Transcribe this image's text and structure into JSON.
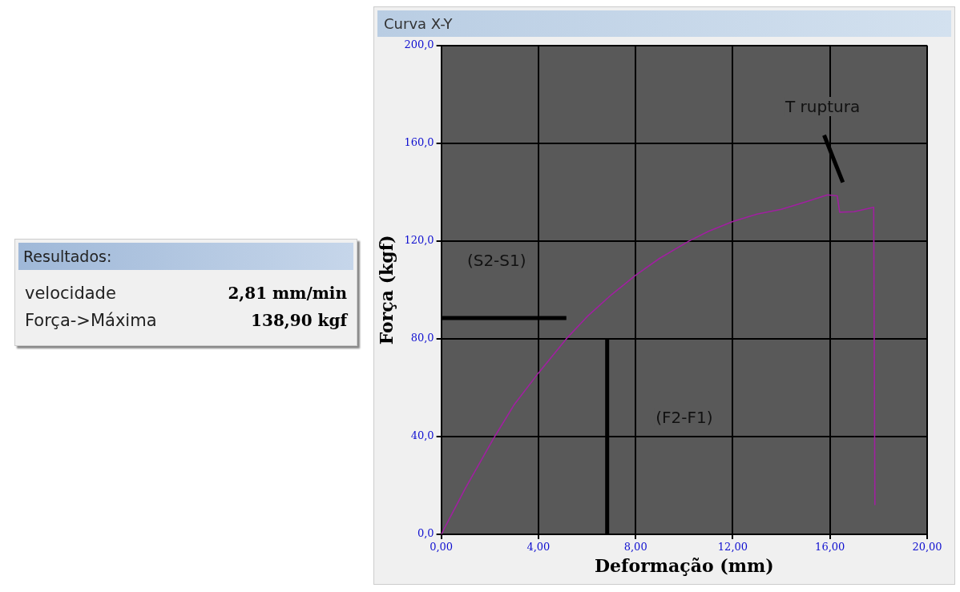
{
  "chart_data": [
    {
      "type": "other",
      "title": "Resultados:",
      "annotations": [
        "velocidade",
        "2,81 mm/min",
        "Força->Máxima",
        "138,90 kgf"
      ]
    },
    {
      "type": "line",
      "title": "Curva X-Y",
      "xlabel": "Deformação (mm)",
      "ylabel": "Força (kgf)",
      "x": [
        0,
        1,
        2.2,
        3,
        4,
        5.15,
        6,
        7,
        8,
        9,
        10.2,
        11,
        12,
        13,
        14,
        15,
        15.9,
        16.3,
        16.4,
        17,
        17.8,
        17.85
      ],
      "series": [
        {
          "color": "#a020a0",
          "values": [
            0,
            19,
            40,
            53,
            66,
            80,
            89,
            98,
            106,
            113,
            120,
            124,
            128,
            131,
            133,
            136,
            138.9,
            138.5,
            131.8,
            132,
            133.8,
            12
          ]
        },
        {
          "color": "#000000",
          "x": [
            0,
            5.15
          ],
          "values": [
            88.5,
            88.5
          ]
        },
        {
          "color": "#000000",
          "x": [
            6.83,
            6.83
          ],
          "values": [
            0,
            80
          ]
        },
        {
          "color": "#000000",
          "x": [
            15.76,
            16.53
          ],
          "values": [
            163.3,
            144
          ]
        }
      ],
      "xlim": [
        0,
        20
      ],
      "ylim": [
        0,
        200
      ],
      "xticks": [
        {
          "value": 0,
          "label": "0,00"
        },
        {
          "value": 4,
          "label": "4,00"
        },
        {
          "value": 8,
          "label": "8,00"
        },
        {
          "value": 12,
          "label": "12,00"
        },
        {
          "value": 16,
          "label": "16,00"
        },
        {
          "value": 20,
          "label": "20,00"
        }
      ],
      "yticks": [
        {
          "value": 0,
          "label": "0,0"
        },
        {
          "value": 40,
          "label": "40,0"
        },
        {
          "value": 80,
          "label": "80,0"
        },
        {
          "value": 120,
          "label": "120,0"
        },
        {
          "value": 160,
          "label": "160,0"
        },
        {
          "value": 200,
          "label": "200,0"
        }
      ],
      "grid": true,
      "legend": false,
      "marker": "none",
      "line_style": "solid",
      "annotations": [
        "(S2-S1)",
        "(F2-F1)",
        "T ruptura"
      ]
    }
  ]
}
